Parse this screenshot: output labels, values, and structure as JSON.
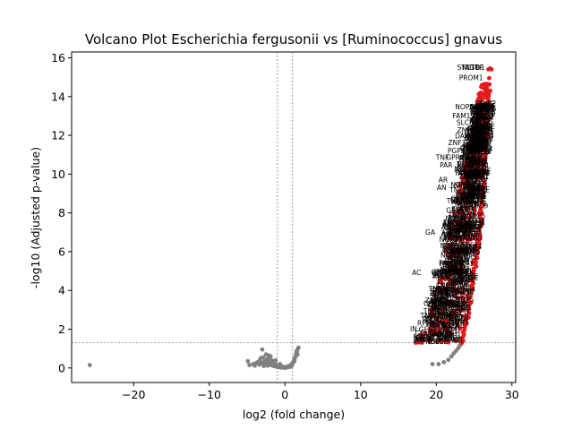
{
  "chart_data": {
    "type": "scatter",
    "title": "Volcano Plot Escherichia fergusonii vs [Ruminococcus] gnavus",
    "xlabel": "log2 (fold change)",
    "ylabel": "-log10 (Adjusted p-value)",
    "xlim": [
      -28.2,
      30.5
    ],
    "ylim": [
      -0.75,
      16.3
    ],
    "xticks": [
      -20,
      -10,
      0,
      10,
      20,
      30
    ],
    "yticks": [
      0,
      2,
      4,
      6,
      8,
      10,
      12,
      14,
      16
    ],
    "grid": false,
    "thresholds": {
      "fold_change_lines": [
        -1,
        1
      ],
      "pvalue_line": 1.3
    },
    "colors": {
      "significant": "#e31a1c",
      "not_significant": "#808080",
      "threshold_line": "#808080",
      "label_text": "#000000"
    },
    "series": [
      {
        "significance": "not_significant",
        "points": [
          [
            -25.8,
            0.15
          ],
          [
            -4.9,
            0.35
          ],
          [
            -4.7,
            0.15
          ],
          [
            -4.2,
            0.2
          ],
          [
            -4.0,
            0.12
          ],
          [
            -3.6,
            0.3
          ],
          [
            -3.4,
            0.18
          ],
          [
            -3.3,
            0.42
          ],
          [
            -3.1,
            0.25
          ],
          [
            -3.0,
            0.95
          ],
          [
            -2.9,
            0.55
          ],
          [
            -2.8,
            0.1
          ],
          [
            -2.7,
            0.35
          ],
          [
            -2.6,
            0.2
          ],
          [
            -2.5,
            0.7
          ],
          [
            -2.4,
            0.45
          ],
          [
            -2.3,
            0.12
          ],
          [
            -2.2,
            0.3
          ],
          [
            -2.1,
            0.5
          ],
          [
            -2.0,
            0.22
          ],
          [
            -1.9,
            0.6
          ],
          [
            -1.8,
            0.15
          ],
          [
            -1.7,
            0.38
          ],
          [
            -1.6,
            0.28
          ],
          [
            -1.5,
            0.1
          ],
          [
            -1.4,
            0.2
          ],
          [
            -1.3,
            0.3
          ],
          [
            -1.2,
            0.08
          ],
          [
            -1.1,
            0.15
          ],
          [
            -1.0,
            0.05
          ],
          [
            -0.9,
            0.1
          ],
          [
            -0.8,
            0.04
          ],
          [
            -0.7,
            0.12
          ],
          [
            -0.6,
            0.06
          ],
          [
            -0.5,
            0.02
          ],
          [
            -0.4,
            0.08
          ],
          [
            -0.3,
            0.03
          ],
          [
            -0.2,
            0.05
          ],
          [
            -0.1,
            0.01
          ],
          [
            0.0,
            0.02
          ],
          [
            0.1,
            0.04
          ],
          [
            0.2,
            0.02
          ],
          [
            0.3,
            0.06
          ],
          [
            0.4,
            0.08
          ],
          [
            0.5,
            0.1
          ],
          [
            0.6,
            0.05
          ],
          [
            0.7,
            0.12
          ],
          [
            0.8,
            0.15
          ],
          [
            0.9,
            0.2
          ],
          [
            1.0,
            0.25
          ],
          [
            1.1,
            0.3
          ],
          [
            1.2,
            0.4
          ],
          [
            1.3,
            0.5
          ],
          [
            1.4,
            0.6
          ],
          [
            1.5,
            0.75
          ],
          [
            1.6,
            0.9
          ],
          [
            1.7,
            1.0
          ],
          [
            1.8,
            1.05
          ],
          [
            1.55,
            0.85
          ],
          [
            1.65,
            0.7
          ],
          [
            0.85,
            0.08
          ],
          [
            0.95,
            0.18
          ],
          [
            1.25,
            0.35
          ],
          [
            -0.65,
            0.2
          ],
          [
            -1.25,
            0.4
          ],
          [
            -2.15,
            0.65
          ],
          [
            -3.2,
            0.5
          ],
          [
            -3.8,
            0.25
          ],
          [
            19.5,
            0.2
          ],
          [
            20.3,
            0.2
          ],
          [
            21.0,
            0.3
          ],
          [
            21.6,
            0.42
          ],
          [
            22.0,
            0.6
          ],
          [
            22.3,
            0.75
          ],
          [
            22.6,
            0.88
          ],
          [
            22.9,
            1.02
          ],
          [
            23.1,
            1.15
          ],
          [
            23.3,
            1.25
          ]
        ]
      },
      {
        "significance": "significant",
        "band": {
          "y_min": 1.3,
          "y_max": 15.5,
          "left_edge": [
            [
              1.3,
              17.0
            ],
            [
              2,
              18.3
            ],
            [
              4,
              20.0
            ],
            [
              6,
              21.2
            ],
            [
              8,
              22.1
            ],
            [
              10,
              23.4
            ],
            [
              12,
              24.8
            ],
            [
              14,
              25.5
            ],
            [
              15.5,
              26.8
            ]
          ],
          "right_edge": [
            [
              1.3,
              23.5
            ],
            [
              2,
              24.0
            ],
            [
              4,
              24.9
            ],
            [
              6,
              25.6
            ],
            [
              8,
              26.2
            ],
            [
              10,
              26.5
            ],
            [
              12,
              26.8
            ],
            [
              14,
              27.1
            ],
            [
              15.5,
              27.3
            ]
          ]
        },
        "top_points": [
          [
            27.3,
            15.4
          ],
          [
            27.1,
            15.45
          ],
          [
            26.9,
            15.4
          ],
          [
            27.0,
            14.95
          ],
          [
            26.8,
            13.3
          ],
          [
            26.7,
            13.05
          ],
          [
            26.9,
            12.95
          ],
          [
            26.6,
            12.8
          ],
          [
            26.8,
            12.65
          ],
          [
            26.5,
            12.5
          ],
          [
            26.7,
            12.1
          ],
          [
            26.6,
            11.95
          ],
          [
            26.5,
            11.8
          ],
          [
            26.9,
            11.9
          ],
          [
            26.4,
            11.4
          ],
          [
            26.3,
            11.0
          ],
          [
            26.5,
            10.8
          ]
        ]
      }
    ],
    "annotations": [
      {
        "text": "STAG1",
        "x": 24.2,
        "y": 15.5
      },
      {
        "text": "NETO1",
        "x": 24.9,
        "y": 15.5
      },
      {
        "text": "TBP",
        "x": 25.4,
        "y": 15.5
      },
      {
        "text": "PROM1",
        "x": 24.6,
        "y": 14.95
      },
      {
        "text": "NOP56",
        "x": 24.0,
        "y": 13.45
      },
      {
        "text": "FAM199",
        "x": 23.9,
        "y": 13.0
      },
      {
        "text": "BPI",
        "x": 25.6,
        "y": 13.0
      },
      {
        "text": "SLC8A",
        "x": 24.1,
        "y": 12.65
      },
      {
        "text": "ZNF25",
        "x": 24.2,
        "y": 12.25
      },
      {
        "text": "DARRS",
        "x": 24.0,
        "y": 11.95
      },
      {
        "text": "ZNF384",
        "x": 23.3,
        "y": 11.6
      },
      {
        "text": "PGPEP1",
        "x": 23.2,
        "y": 11.2
      },
      {
        "text": "GPR81",
        "x": 22.8,
        "y": 10.85
      },
      {
        "text": "TNF",
        "x": 20.8,
        "y": 10.85
      },
      {
        "text": "PAR",
        "x": 21.3,
        "y": 10.45
      },
      {
        "text": "AR",
        "x": 20.9,
        "y": 9.7
      },
      {
        "text": "AN",
        "x": 20.7,
        "y": 9.3
      },
      {
        "text": "GA",
        "x": 19.2,
        "y": 7.0
      },
      {
        "text": "AC",
        "x": 17.4,
        "y": 4.9
      },
      {
        "text": "IN",
        "x": 17.0,
        "y": 2.0
      }
    ]
  }
}
